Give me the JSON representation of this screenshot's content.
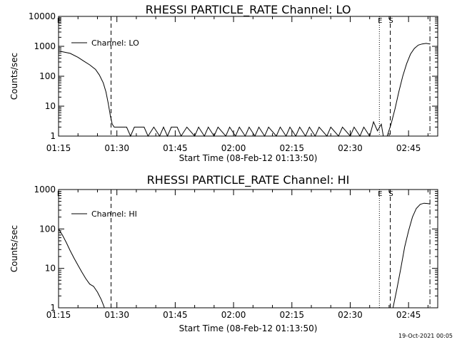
{
  "footer": {
    "date": "19-Oct-2021 00:05"
  },
  "chart_data": [
    {
      "type": "line",
      "title": "RHESSI PARTICLE_RATE Channel: LO",
      "xlabel": "Start Time (08-Feb-12 01:13:50)",
      "ylabel": "Counts/sec",
      "xlim_minutes_from_0115": [
        0,
        97.5
      ],
      "ylim": [
        1,
        10000
      ],
      "yscale": "log",
      "x_ticks": [
        "01:15",
        "01:30",
        "01:45",
        "02:00",
        "02:15",
        "02:30",
        "02:45"
      ],
      "y_ticks": [
        "1",
        "10",
        "100",
        "1000",
        "10000"
      ],
      "y_tick_values": [
        1,
        10,
        100,
        1000,
        10000
      ],
      "legend": {
        "label": "Channel: LO",
        "placement": "top-left"
      },
      "markers": [
        {
          "label": "E",
          "minute": 0,
          "style": "solid"
        },
        {
          "label": "",
          "minute": 13.5,
          "style": "dashed"
        },
        {
          "label": "E",
          "minute": 82.5,
          "style": "dotted"
        },
        {
          "label": "S",
          "minute": 85.3,
          "style": "dashed"
        },
        {
          "label": "",
          "minute": 95.5,
          "style": "dashdot"
        }
      ],
      "series": [
        {
          "name": "Channel: LO",
          "x_minutes": [
            0,
            3,
            5,
            6.5,
            8,
            9.5,
            10.5,
            11.5,
            12.2,
            12.8,
            13.3,
            13.8,
            14.3,
            17.5,
            18.5,
            19.5,
            22,
            23,
            24.5,
            26,
            27,
            28,
            29,
            30.5,
            31.5,
            33,
            35,
            36,
            37.5,
            38.5,
            40,
            41,
            43,
            44,
            45.5,
            46.5,
            48,
            49,
            50.5,
            51.5,
            53,
            54,
            56,
            57,
            58.5,
            59.5,
            61,
            62,
            63.5,
            64.5,
            66,
            67,
            69,
            70,
            72,
            73,
            75,
            76,
            77.5,
            78.5,
            80,
            81,
            82,
            83,
            83.5,
            84.5,
            85.5,
            86.5,
            87.5,
            88.5,
            89.5,
            90.5,
            91.5,
            92.5,
            93.5,
            94.5,
            95.5
          ],
          "values": [
            700,
            580,
            430,
            320,
            240,
            170,
            110,
            60,
            30,
            12,
            5,
            2.5,
            2,
            2,
            1,
            2,
            2,
            1,
            2,
            1,
            2,
            1,
            2,
            2,
            1,
            2,
            1,
            2,
            1,
            2,
            1,
            2,
            1,
            2,
            1,
            2,
            1,
            2,
            1,
            2,
            1,
            2,
            1,
            2,
            1,
            2,
            1,
            2,
            1,
            2,
            1,
            2,
            1,
            2,
            1,
            2,
            1,
            2,
            1,
            2,
            1,
            3,
            1.5,
            2.5,
            1,
            1,
            2.5,
            8,
            30,
            100,
            260,
            550,
            850,
            1100,
            1200,
            1250,
            1200
          ]
        }
      ]
    },
    {
      "type": "line",
      "title": "RHESSI PARTICLE_RATE Channel: HI",
      "xlabel": "Start Time (08-Feb-12 01:13:50)",
      "ylabel": "Counts/sec",
      "xlim_minutes_from_0115": [
        0,
        97.5
      ],
      "ylim": [
        1,
        1000
      ],
      "yscale": "log",
      "x_ticks": [
        "01:15",
        "01:30",
        "01:45",
        "02:00",
        "02:15",
        "02:30",
        "02:45"
      ],
      "y_ticks": [
        "1",
        "10",
        "100",
        "1000"
      ],
      "y_tick_values": [
        1,
        10,
        100,
        1000
      ],
      "legend": {
        "label": "Channel: HI",
        "placement": "top-left"
      },
      "markers": [
        {
          "label": "E",
          "minute": 0,
          "style": "solid"
        },
        {
          "label": "",
          "minute": 13.5,
          "style": "dashed"
        },
        {
          "label": "E",
          "minute": 82.5,
          "style": "dotted"
        },
        {
          "label": "S",
          "minute": 85.3,
          "style": "dashed"
        },
        {
          "label": "",
          "minute": 95.5,
          "style": "dashdot"
        }
      ],
      "series": [
        {
          "name": "Channel: HI",
          "x_minutes": [
            0,
            1,
            2,
            3,
            4,
            5,
            6,
            7,
            8,
            9,
            10,
            11,
            11.5,
            11.8,
            86,
            87,
            88,
            89,
            90,
            91,
            92,
            93,
            94,
            95,
            95.5
          ],
          "values": [
            100,
            70,
            45,
            28,
            18,
            12,
            8,
            5.5,
            4,
            3.5,
            2.5,
            1.6,
            1.2,
            1,
            1,
            3,
            10,
            35,
            90,
            200,
            330,
            420,
            450,
            440,
            430
          ]
        }
      ]
    }
  ]
}
